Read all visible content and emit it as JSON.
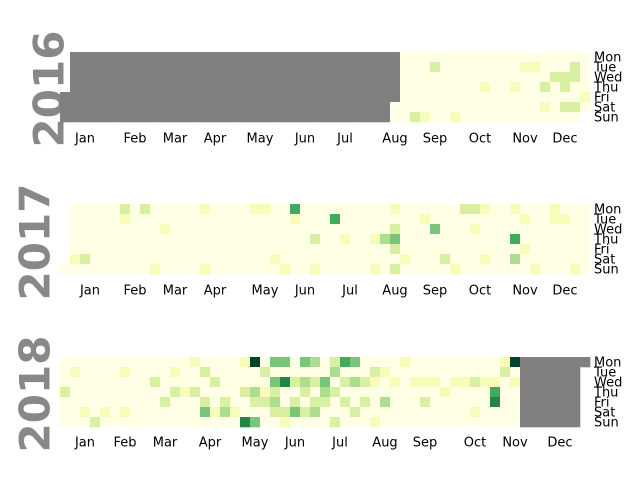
{
  "chart_data": {
    "type": "heatmap",
    "title": "",
    "colors": {
      "missing": "#808080",
      "scale": [
        "#ffffe5",
        "#f7fcb9",
        "#d9f0a3",
        "#addd8e",
        "#78c679",
        "#41ab5d",
        "#238443",
        "#006837",
        "#004529"
      ]
    },
    "weekday_labels": [
      "Mon",
      "Tue",
      "Wed",
      "Thu",
      "Fri",
      "Sat",
      "Sun"
    ],
    "panels": [
      {
        "year": "2016",
        "month_labels": [
          "Jan",
          "Feb",
          "Mar",
          "Apr",
          "May",
          "Jun",
          "Jul",
          "Aug",
          "Sep",
          "Oct",
          "Nov",
          "Dec"
        ],
        "missing_until": "2016-08-20",
        "highlights": [
          [
            "2016-09-04",
            2
          ],
          [
            "2016-09-11",
            1
          ],
          [
            "2016-09-13",
            2
          ],
          [
            "2016-10-02",
            1
          ],
          [
            "2016-10-20",
            1
          ],
          [
            "2016-11-10",
            1
          ],
          [
            "2016-11-15",
            1
          ],
          [
            "2016-11-22",
            1
          ],
          [
            "2016-12-01",
            2
          ],
          [
            "2016-12-03",
            1
          ],
          [
            "2016-12-07",
            2
          ],
          [
            "2016-12-14",
            2
          ],
          [
            "2016-12-15",
            2
          ],
          [
            "2016-12-17",
            2
          ],
          [
            "2016-12-20",
            2
          ],
          [
            "2016-12-21",
            2
          ],
          [
            "2016-12-24",
            2
          ],
          [
            "2016-12-30",
            1
          ]
        ]
      },
      {
        "year": "2017",
        "month_labels": [
          "Jan",
          "Feb",
          "Mar",
          "Apr",
          "May",
          "Jun",
          "Jul",
          "Aug",
          "Sep",
          "Oct",
          "Nov",
          "Dec"
        ],
        "highlights": [
          [
            "2017-01-07",
            1
          ],
          [
            "2017-01-14",
            2
          ],
          [
            "2017-02-06",
            2
          ],
          [
            "2017-02-07",
            1
          ],
          [
            "2017-02-20",
            2
          ],
          [
            "2017-03-05",
            1
          ],
          [
            "2017-03-08",
            1
          ],
          [
            "2017-04-03",
            1
          ],
          [
            "2017-04-09",
            1
          ],
          [
            "2017-05-08",
            1
          ],
          [
            "2017-05-15",
            1
          ],
          [
            "2017-05-27",
            1
          ],
          [
            "2017-06-04",
            1
          ],
          [
            "2017-06-05",
            5
          ],
          [
            "2017-06-06",
            1
          ],
          [
            "2017-06-22",
            2
          ],
          [
            "2017-06-25",
            1
          ],
          [
            "2017-07-04",
            5
          ],
          [
            "2017-07-13",
            1
          ],
          [
            "2017-08-03",
            1
          ],
          [
            "2017-08-06",
            1
          ],
          [
            "2017-08-10",
            3
          ],
          [
            "2017-08-14",
            1
          ],
          [
            "2017-08-16",
            2
          ],
          [
            "2017-08-17",
            4
          ],
          [
            "2017-08-18",
            2
          ],
          [
            "2017-08-20",
            2
          ],
          [
            "2017-08-26",
            1
          ],
          [
            "2017-09-05",
            1
          ],
          [
            "2017-09-13",
            4
          ],
          [
            "2017-09-23",
            2
          ],
          [
            "2017-10-01",
            1
          ],
          [
            "2017-10-02",
            2
          ],
          [
            "2017-10-09",
            2
          ],
          [
            "2017-10-11",
            1
          ],
          [
            "2017-10-16",
            1
          ],
          [
            "2017-10-21",
            1
          ],
          [
            "2017-11-06",
            1
          ],
          [
            "2017-11-09",
            5
          ],
          [
            "2017-11-11",
            3
          ],
          [
            "2017-11-14",
            1
          ],
          [
            "2017-11-17",
            1
          ],
          [
            "2017-11-26",
            1
          ],
          [
            "2017-12-04",
            1
          ],
          [
            "2017-12-05",
            1
          ],
          [
            "2017-12-12",
            1
          ],
          [
            "2017-12-24",
            1
          ]
        ]
      },
      {
        "year": "2018",
        "month_labels": [
          "Jan",
          "Feb",
          "Mar",
          "Apr",
          "May",
          "Jun",
          "Jul",
          "Aug",
          "Sep",
          "Oct",
          "Nov",
          "Dec"
        ],
        "missing_from": "2018-11-19",
        "highlights": [
          [
            "2018-01-04",
            2
          ],
          [
            "2018-01-09",
            1
          ],
          [
            "2018-01-20",
            1
          ],
          [
            "2018-01-28",
            2
          ],
          [
            "2018-02-03",
            1
          ],
          [
            "2018-02-13",
            1
          ],
          [
            "2018-02-17",
            1
          ],
          [
            "2018-03-07",
            2
          ],
          [
            "2018-03-16",
            2
          ],
          [
            "2018-03-20",
            1
          ],
          [
            "2018-03-22",
            2
          ],
          [
            "2018-03-29",
            1
          ],
          [
            "2018-04-02",
            1
          ],
          [
            "2018-04-05",
            2
          ],
          [
            "2018-04-10",
            2
          ],
          [
            "2018-04-13",
            2
          ],
          [
            "2018-04-14",
            4
          ],
          [
            "2018-04-18",
            2
          ],
          [
            "2018-04-21",
            1
          ],
          [
            "2018-04-27",
            2
          ],
          [
            "2018-04-28",
            3
          ],
          [
            "2018-05-05",
            1
          ],
          [
            "2018-05-07",
            1
          ],
          [
            "2018-05-10",
            2
          ],
          [
            "2018-05-13",
            6
          ],
          [
            "2018-05-14",
            8
          ],
          [
            "2018-05-17",
            3
          ],
          [
            "2018-05-18",
            2
          ],
          [
            "2018-05-20",
            4
          ],
          [
            "2018-05-22",
            2
          ],
          [
            "2018-05-24",
            1
          ],
          [
            "2018-05-25",
            2
          ],
          [
            "2018-05-28",
            4
          ],
          [
            "2018-05-30",
            4
          ],
          [
            "2018-05-31",
            2
          ],
          [
            "2018-06-01",
            3
          ],
          [
            "2018-06-02",
            2
          ],
          [
            "2018-06-04",
            4
          ],
          [
            "2018-06-06",
            6
          ],
          [
            "2018-06-09",
            2
          ],
          [
            "2018-06-10",
            1
          ],
          [
            "2018-06-13",
            2
          ],
          [
            "2018-06-15",
            2
          ],
          [
            "2018-06-16",
            4
          ],
          [
            "2018-06-18",
            4
          ],
          [
            "2018-06-20",
            3
          ],
          [
            "2018-06-21",
            2
          ],
          [
            "2018-06-23",
            2
          ],
          [
            "2018-06-25",
            3
          ],
          [
            "2018-06-27",
            2
          ],
          [
            "2018-06-29",
            2
          ],
          [
            "2018-06-30",
            3
          ],
          [
            "2018-07-04",
            4
          ],
          [
            "2018-07-05",
            3
          ],
          [
            "2018-07-06",
            2
          ],
          [
            "2018-07-09",
            2
          ],
          [
            "2018-07-10",
            3
          ],
          [
            "2018-07-12",
            2
          ],
          [
            "2018-07-15",
            2
          ],
          [
            "2018-07-16",
            5
          ],
          [
            "2018-07-18",
            2
          ],
          [
            "2018-07-20",
            2
          ],
          [
            "2018-07-23",
            4
          ],
          [
            "2018-07-25",
            3
          ],
          [
            "2018-07-28",
            2
          ],
          [
            "2018-08-01",
            2
          ],
          [
            "2018-08-03",
            2
          ],
          [
            "2018-08-07",
            2
          ],
          [
            "2018-08-08",
            1
          ],
          [
            "2018-08-12",
            1
          ],
          [
            "2018-08-14",
            1
          ],
          [
            "2018-08-17",
            3
          ],
          [
            "2018-08-22",
            1
          ],
          [
            "2018-08-27",
            1
          ],
          [
            "2018-09-05",
            1
          ],
          [
            "2018-09-12",
            1
          ],
          [
            "2018-09-14",
            2
          ],
          [
            "2018-09-19",
            1
          ],
          [
            "2018-09-27",
            1
          ],
          [
            "2018-10-03",
            1
          ],
          [
            "2018-10-10",
            1
          ],
          [
            "2018-10-17",
            2
          ],
          [
            "2018-10-20",
            1
          ],
          [
            "2018-10-24",
            1
          ],
          [
            "2018-10-31",
            1
          ],
          [
            "2018-11-01",
            5
          ],
          [
            "2018-11-02",
            6
          ],
          [
            "2018-11-05",
            1
          ],
          [
            "2018-11-06",
            2
          ],
          [
            "2018-11-12",
            8
          ],
          [
            "2018-11-14",
            1
          ]
        ]
      }
    ]
  }
}
